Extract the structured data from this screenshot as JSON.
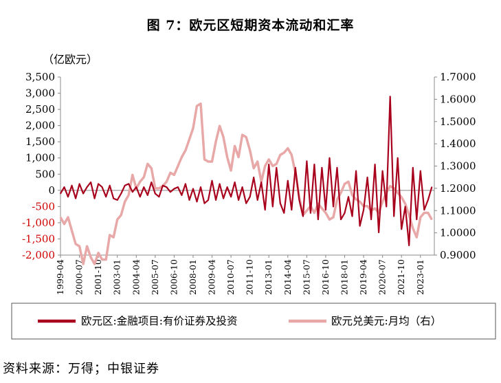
{
  "header": {
    "title": "图 7：欧元区短期资本流动和汇率",
    "unit": "（亿欧元）"
  },
  "footer": {
    "source": "资料来源：万得；中银证券"
  },
  "chart_data": {
    "type": "line",
    "title": "图 7：欧元区短期资本流动和汇率",
    "left_axis": {
      "unit": "（亿欧元）",
      "range": [
        -2000,
        3500
      ],
      "ticks": [
        "3,500",
        "3,000",
        "2,500",
        "2,000",
        "1,500",
        "1,000",
        "500",
        "0",
        "-500",
        "-1,000",
        "-1,500",
        "-2,000"
      ],
      "tick_values": [
        3500,
        3000,
        2500,
        2000,
        1500,
        1000,
        500,
        0,
        -500,
        -1000,
        -1500,
        -2000
      ],
      "negative_tick_color": "#d00000"
    },
    "right_axis": {
      "range": [
        0.9,
        1.7
      ],
      "ticks": [
        "1.7000",
        "1.6000",
        "1.5000",
        "1.4000",
        "1.3000",
        "1.2000",
        "1.1000",
        "1.0000",
        "0.9000"
      ],
      "tick_values": [
        1.7,
        1.6,
        1.5,
        1.4,
        1.3,
        1.2,
        1.1,
        1.0,
        0.9
      ]
    },
    "x_axis": {
      "range": [
        "1999-04",
        "2023-12"
      ],
      "ticks": [
        "1999-04",
        "2000-07",
        "2001-10",
        "2003-01",
        "2004-04",
        "2005-07",
        "2006-10",
        "2008-01",
        "2009-04",
        "2010-07",
        "2011-10",
        "2013-01",
        "2014-04",
        "2015-07",
        "2016-10",
        "2018-01",
        "2019-04",
        "2020-07",
        "2021-10",
        "2023-01"
      ]
    },
    "legend_placement": "bottom",
    "grid": false,
    "series": [
      {
        "name": "欧元区:金融项目:有价证券及投资",
        "axis": "left",
        "color": "#a8001c",
        "x": [
          "1999-04",
          "1999-07",
          "1999-10",
          "2000-01",
          "2000-04",
          "2000-07",
          "2000-10",
          "2001-01",
          "2001-04",
          "2001-07",
          "2001-10",
          "2002-01",
          "2002-04",
          "2002-07",
          "2002-10",
          "2003-01",
          "2003-04",
          "2003-07",
          "2003-10",
          "2004-01",
          "2004-04",
          "2004-07",
          "2004-10",
          "2005-01",
          "2005-04",
          "2005-07",
          "2005-10",
          "2006-01",
          "2006-04",
          "2006-07",
          "2006-10",
          "2007-01",
          "2007-04",
          "2007-07",
          "2007-10",
          "2008-01",
          "2008-04",
          "2008-07",
          "2008-10",
          "2009-01",
          "2009-04",
          "2009-07",
          "2009-10",
          "2010-01",
          "2010-04",
          "2010-07",
          "2010-10",
          "2011-01",
          "2011-04",
          "2011-07",
          "2011-10",
          "2012-01",
          "2012-04",
          "2012-07",
          "2012-10",
          "2013-01",
          "2013-04",
          "2013-07",
          "2013-10",
          "2014-01",
          "2014-04",
          "2014-07",
          "2014-10",
          "2015-01",
          "2015-04",
          "2015-07",
          "2015-10",
          "2016-01",
          "2016-04",
          "2016-07",
          "2016-10",
          "2017-01",
          "2017-04",
          "2017-07",
          "2017-10",
          "2018-01",
          "2018-04",
          "2018-07",
          "2018-10",
          "2019-01",
          "2019-04",
          "2019-07",
          "2019-10",
          "2020-01",
          "2020-04",
          "2020-07",
          "2020-10",
          "2021-01",
          "2021-04",
          "2021-07",
          "2021-10",
          "2022-01",
          "2022-04",
          "2022-07",
          "2022-10",
          "2023-01",
          "2023-04",
          "2023-07",
          "2023-10"
        ],
        "values": [
          -100,
          100,
          -200,
          150,
          -250,
          200,
          -100,
          100,
          250,
          -250,
          200,
          100,
          -200,
          150,
          -250,
          -300,
          -100,
          150,
          200,
          -50,
          100,
          -200,
          100,
          -150,
          250,
          -100,
          -200,
          150,
          100,
          -50,
          50,
          100,
          -150,
          200,
          -300,
          50,
          -350,
          100,
          -400,
          -300,
          300,
          -300,
          200,
          -250,
          100,
          -200,
          250,
          -300,
          100,
          -400,
          -200,
          400,
          -300,
          250,
          -600,
          800,
          -500,
          700,
          -400,
          -700,
          300,
          -600,
          700,
          -300,
          -800,
          900,
          -700,
          800,
          -900,
          700,
          -600,
          1000,
          -500,
          700,
          -900,
          -700,
          -200,
          -800,
          600,
          -1100,
          -600,
          400,
          -900,
          800,
          -1300,
          600,
          -500,
          2900,
          -800,
          1000,
          -1200,
          -500,
          -1700,
          700,
          -900,
          600,
          -600,
          -300,
          100
        ],
        "legend_swatch": "thick"
      },
      {
        "name": "欧元兑美元:月均（右）",
        "axis": "right",
        "color": "#e8a8a8",
        "x": [
          "1999-04",
          "1999-07",
          "1999-10",
          "2000-01",
          "2000-04",
          "2000-07",
          "2000-10",
          "2001-01",
          "2001-04",
          "2001-07",
          "2001-10",
          "2002-01",
          "2002-04",
          "2002-07",
          "2002-10",
          "2003-01",
          "2003-04",
          "2003-07",
          "2003-10",
          "2004-01",
          "2004-04",
          "2004-07",
          "2004-10",
          "2005-01",
          "2005-04",
          "2005-07",
          "2005-10",
          "2006-01",
          "2006-04",
          "2006-07",
          "2006-10",
          "2007-01",
          "2007-04",
          "2007-07",
          "2007-10",
          "2008-01",
          "2008-04",
          "2008-07",
          "2008-10",
          "2009-01",
          "2009-04",
          "2009-07",
          "2009-10",
          "2010-01",
          "2010-04",
          "2010-07",
          "2010-10",
          "2011-01",
          "2011-04",
          "2011-07",
          "2011-10",
          "2012-01",
          "2012-04",
          "2012-07",
          "2012-10",
          "2013-01",
          "2013-04",
          "2013-07",
          "2013-10",
          "2014-01",
          "2014-04",
          "2014-07",
          "2014-10",
          "2015-01",
          "2015-04",
          "2015-07",
          "2015-10",
          "2016-01",
          "2016-04",
          "2016-07",
          "2016-10",
          "2017-01",
          "2017-04",
          "2017-07",
          "2017-10",
          "2018-01",
          "2018-04",
          "2018-07",
          "2018-10",
          "2019-01",
          "2019-04",
          "2019-07",
          "2019-10",
          "2020-01",
          "2020-04",
          "2020-07",
          "2020-10",
          "2021-01",
          "2021-04",
          "2021-07",
          "2021-10",
          "2022-01",
          "2022-04",
          "2022-07",
          "2022-10",
          "2023-01",
          "2023-04",
          "2023-07",
          "2023-10"
        ],
        "values": [
          1.07,
          1.04,
          1.07,
          1.01,
          0.95,
          0.94,
          0.86,
          0.94,
          0.89,
          0.86,
          0.91,
          0.88,
          0.88,
          0.99,
          0.98,
          1.06,
          1.08,
          1.14,
          1.17,
          1.26,
          1.2,
          1.23,
          1.25,
          1.31,
          1.29,
          1.2,
          1.2,
          1.21,
          1.23,
          1.27,
          1.26,
          1.3,
          1.34,
          1.37,
          1.42,
          1.47,
          1.57,
          1.58,
          1.33,
          1.32,
          1.32,
          1.41,
          1.48,
          1.43,
          1.34,
          1.28,
          1.39,
          1.34,
          1.44,
          1.43,
          1.37,
          1.29,
          1.32,
          1.23,
          1.3,
          1.33,
          1.3,
          1.31,
          1.35,
          1.36,
          1.38,
          1.35,
          1.27,
          1.16,
          1.08,
          1.1,
          1.12,
          1.09,
          1.13,
          1.11,
          1.09,
          1.06,
          1.07,
          1.15,
          1.18,
          1.22,
          1.23,
          1.17,
          1.15,
          1.14,
          1.12,
          1.12,
          1.1,
          1.11,
          1.09,
          1.14,
          1.18,
          1.21,
          1.2,
          1.18,
          1.16,
          1.13,
          1.08,
          1.02,
          0.98,
          1.07,
          1.09,
          1.09,
          1.06
        ],
        "legend_swatch": "thin"
      }
    ]
  }
}
